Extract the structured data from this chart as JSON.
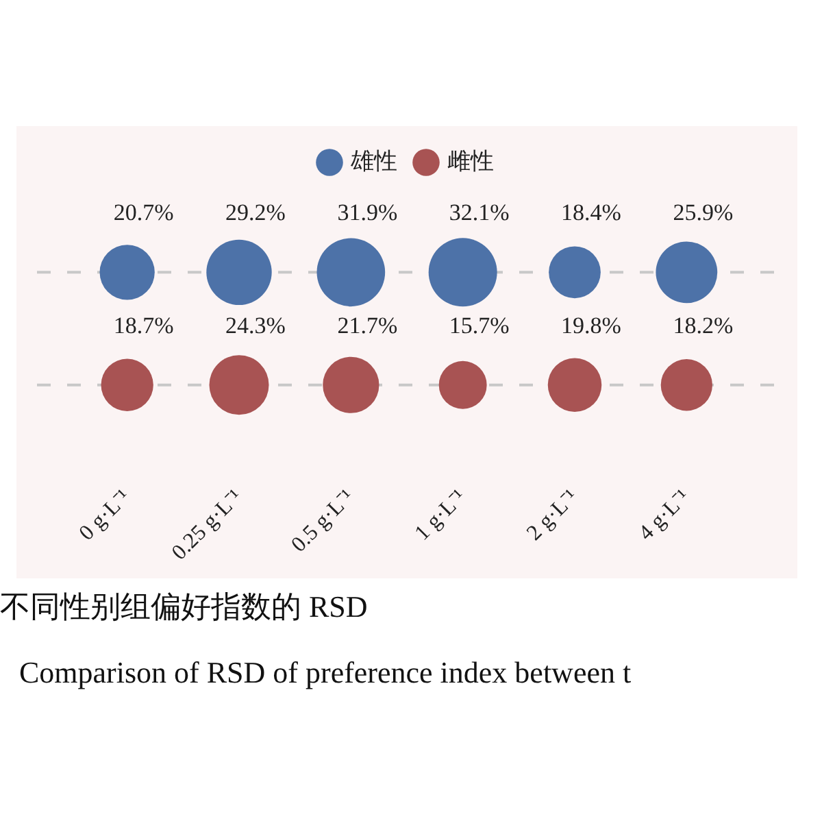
{
  "chart_data": {
    "type": "other",
    "categories": [
      "0 g·L⁻¹",
      "0.25 g·L⁻¹",
      "0.5 g·L⁻¹",
      "1 g·L⁻¹",
      "2 g·L⁻¹",
      "4 g·L⁻¹"
    ],
    "series": [
      {
        "name": "雄性",
        "color": "#4d72a8",
        "values": [
          20.7,
          29.2,
          31.9,
          32.1,
          18.4,
          25.9
        ],
        "value_labels": [
          "20.7%",
          "29.2%",
          "31.9%",
          "32.1%",
          "18.4%",
          "25.9%"
        ]
      },
      {
        "name": "雌性",
        "color": "#a85353",
        "values": [
          18.7,
          24.3,
          21.7,
          15.7,
          19.8,
          18.2
        ],
        "value_labels": [
          "18.7%",
          "24.3%",
          "21.7%",
          "15.7%",
          "19.8%",
          "18.2%"
        ]
      }
    ],
    "legend": "top",
    "annotations": [
      "不同性别组偏好指数的 RSD",
      "Comparison of RSD of preference index between t"
    ]
  }
}
